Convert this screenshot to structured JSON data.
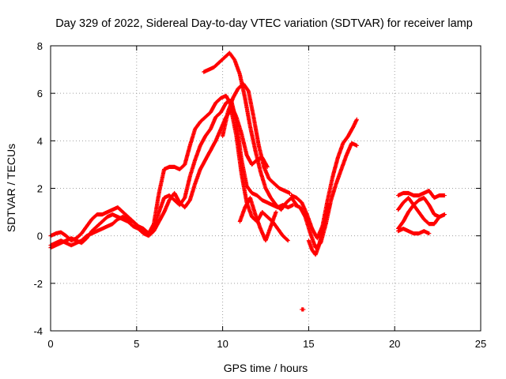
{
  "chart_data": {
    "type": "scatter",
    "title": "Day 329 of 2022, Sidereal Day-to-day VTEC variation (SDTVAR) for receiver lamp",
    "xlabel": "GPS time / hours",
    "ylabel": "SDTVAR / TECUs",
    "xlim": [
      0,
      25
    ],
    "ylim": [
      -4,
      8
    ],
    "xticks": [
      0,
      5,
      10,
      15,
      20,
      25
    ],
    "yticks": [
      -4,
      -2,
      0,
      2,
      4,
      6,
      8
    ],
    "grid": true,
    "legend": "none",
    "marker": "plus",
    "color": "#ff0000",
    "series": [
      {
        "x": [
          0.0,
          0.3,
          0.6,
          0.9,
          1.2,
          1.5,
          1.8,
          2.1,
          2.4,
          2.7,
          3.0,
          3.3,
          3.6,
          3.9,
          4.2,
          4.5,
          4.8,
          5.1,
          5.4,
          5.7,
          6.0,
          6.3,
          6.6,
          6.9,
          7.2,
          7.5,
          7.8,
          8.1,
          8.4,
          8.7,
          9.0,
          9.3,
          9.6,
          9.9,
          10.2,
          10.5,
          10.8,
          11.1,
          11.4,
          11.7,
          12.0,
          12.3,
          12.6
        ],
        "y": [
          0.0,
          0.1,
          0.15,
          0.0,
          -0.2,
          -0.1,
          0.1,
          0.4,
          0.7,
          0.9,
          0.9,
          1.0,
          1.1,
          1.2,
          1.0,
          0.8,
          0.6,
          0.4,
          0.3,
          0.1,
          0.5,
          1.8,
          2.8,
          2.9,
          2.9,
          2.8,
          3.0,
          3.8,
          4.5,
          4.8,
          5.0,
          5.2,
          5.6,
          5.8,
          5.9,
          5.5,
          5.0,
          4.3,
          3.4,
          3.0,
          3.2,
          3.3,
          2.9
        ]
      },
      {
        "x": [
          0.0,
          0.3,
          0.6,
          0.9,
          1.2,
          1.5,
          1.8,
          2.1,
          2.4,
          2.7,
          3.0,
          3.3,
          3.6,
          3.9,
          4.2,
          4.5,
          4.8,
          5.1,
          5.4,
          5.7,
          6.0,
          6.3,
          6.6,
          6.9,
          7.2,
          7.5,
          7.8,
          8.1,
          8.4,
          8.7,
          9.0,
          9.3,
          9.6,
          9.9,
          10.2,
          10.5,
          10.8,
          11.1,
          11.4,
          11.7,
          12.0,
          12.3,
          12.6,
          12.9,
          13.2,
          13.5,
          13.8,
          14.1
        ],
        "y": [
          -0.4,
          -0.3,
          -0.2,
          -0.3,
          -0.4,
          -0.3,
          -0.2,
          0.0,
          0.1,
          0.2,
          0.3,
          0.4,
          0.5,
          0.7,
          0.8,
          0.7,
          0.6,
          0.4,
          0.2,
          0.1,
          0.3,
          1.0,
          1.6,
          1.7,
          1.5,
          1.3,
          1.6,
          2.5,
          3.2,
          3.8,
          4.2,
          4.5,
          5.0,
          5.2,
          5.6,
          5.7,
          4.8,
          3.2,
          2.1,
          1.8,
          1.7,
          1.5,
          1.4,
          1.3,
          1.2,
          1.3,
          1.2,
          1.3
        ]
      },
      {
        "x": [
          0.0,
          0.3,
          0.6,
          0.9,
          1.2,
          1.5,
          1.8,
          2.1,
          2.4,
          2.7,
          3.0,
          3.3,
          3.6,
          3.9,
          4.2,
          4.5,
          4.8,
          5.1,
          5.4,
          5.7,
          6.0,
          6.3,
          6.6,
          6.9,
          7.2,
          7.5,
          7.8,
          8.1,
          8.4,
          8.7,
          9.0,
          9.3,
          9.6,
          9.9,
          10.2,
          10.5,
          10.8,
          11.1,
          11.4,
          11.7,
          12.0,
          12.3,
          12.6,
          12.9,
          13.2,
          13.5,
          13.8
        ],
        "y": [
          -0.5,
          -0.4,
          -0.3,
          -0.2,
          -0.1,
          -0.2,
          -0.3,
          -0.1,
          0.2,
          0.4,
          0.6,
          0.8,
          0.9,
          0.8,
          0.7,
          0.6,
          0.4,
          0.3,
          0.1,
          0.0,
          0.2,
          0.6,
          1.0,
          1.5,
          1.8,
          1.4,
          1.2,
          1.5,
          2.2,
          2.8,
          3.2,
          3.6,
          4.0,
          4.5,
          5.0,
          5.3,
          4.2,
          2.6,
          1.4,
          0.8,
          0.6,
          1.0,
          0.8,
          0.6,
          0.3,
          0.0,
          -0.2
        ]
      },
      {
        "x": [
          8.9,
          9.2,
          9.5,
          9.8,
          10.1,
          10.4,
          10.7,
          11.0,
          11.3,
          11.6,
          11.9,
          12.2,
          12.5,
          12.8,
          13.1,
          13.4,
          13.7,
          14.0,
          14.3
        ],
        "y": [
          6.9,
          7.0,
          7.1,
          7.3,
          7.5,
          7.7,
          7.4,
          6.8,
          5.8,
          4.6,
          3.6,
          2.7,
          2.0,
          1.6,
          1.3,
          1.1,
          1.4,
          1.6,
          1.3
        ]
      },
      {
        "x": [
          10.0,
          10.3,
          10.6,
          10.9,
          11.2,
          11.5,
          11.8,
          12.1,
          12.4,
          12.7,
          13.0,
          13.3,
          13.6,
          13.9
        ],
        "y": [
          4.2,
          5.2,
          5.8,
          6.2,
          6.4,
          6.1,
          5.0,
          3.8,
          2.9,
          2.4,
          2.2,
          2.0,
          1.9,
          1.8
        ]
      },
      {
        "x": [
          11.0,
          11.3,
          11.6,
          11.9,
          12.2,
          12.5,
          12.8,
          13.1
        ],
        "y": [
          0.6,
          1.2,
          1.6,
          0.9,
          0.3,
          -0.2,
          0.4,
          1.0
        ]
      },
      {
        "x": [
          14.0,
          14.3,
          14.6,
          14.9,
          15.2,
          15.5,
          15.8,
          16.1,
          16.4,
          16.7,
          17.0,
          17.3,
          17.6,
          17.8
        ],
        "y": [
          1.7,
          1.6,
          1.4,
          0.9,
          0.3,
          -0.1,
          0.4,
          1.5,
          2.5,
          3.3,
          3.9,
          4.2,
          4.6,
          4.9
        ]
      },
      {
        "x": [
          14.2,
          14.5,
          14.8,
          15.1,
          15.4,
          15.7,
          16.0,
          16.3,
          16.6,
          16.9,
          17.2,
          17.5,
          17.8
        ],
        "y": [
          1.3,
          1.2,
          0.8,
          0.1,
          -0.5,
          -0.3,
          0.5,
          1.5,
          2.2,
          2.8,
          3.4,
          3.9,
          3.8
        ]
      },
      {
        "x": [
          15.0,
          15.2,
          15.4,
          15.6,
          15.8,
          16.0,
          16.2
        ],
        "y": [
          -0.2,
          -0.6,
          -0.8,
          -0.4,
          0.2,
          0.9,
          1.3
        ]
      },
      {
        "x": [
          14.6,
          14.7
        ],
        "y": [
          -3.1,
          -3.1
        ]
      },
      {
        "x": [
          20.2,
          20.5,
          20.8,
          21.1,
          21.4,
          21.7,
          22.0,
          22.3,
          22.6,
          22.9
        ],
        "y": [
          1.7,
          1.8,
          1.8,
          1.7,
          1.7,
          1.8,
          1.9,
          1.6,
          1.7,
          1.7
        ]
      },
      {
        "x": [
          20.2,
          20.5,
          20.8,
          21.1,
          21.4,
          21.7,
          22.0,
          22.3,
          22.6,
          22.9
        ],
        "y": [
          0.3,
          0.6,
          1.0,
          1.3,
          1.5,
          1.6,
          1.3,
          0.9,
          0.8,
          0.9
        ]
      },
      {
        "x": [
          20.2,
          20.5,
          20.8,
          21.1,
          21.4,
          21.7,
          22.0,
          22.3,
          22.6,
          22.9
        ],
        "y": [
          1.1,
          1.4,
          1.6,
          1.3,
          1.0,
          0.7,
          0.5,
          0.5,
          0.8,
          0.9
        ]
      },
      {
        "x": [
          20.2,
          20.5,
          20.8,
          21.1,
          21.4,
          21.7,
          22.0
        ],
        "y": [
          0.2,
          0.3,
          0.2,
          0.1,
          0.1,
          0.2,
          0.1
        ]
      }
    ]
  }
}
